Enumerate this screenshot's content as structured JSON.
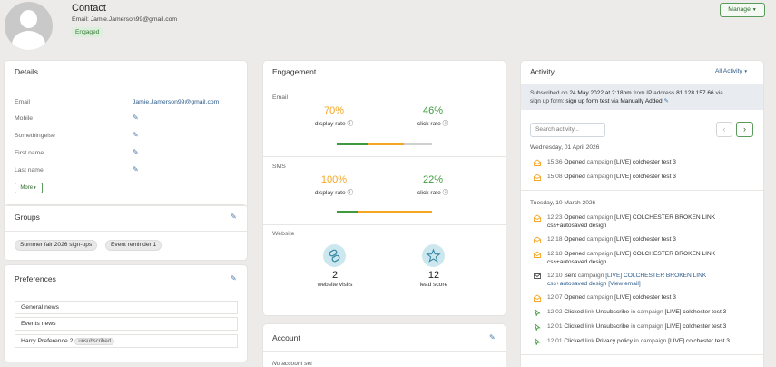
{
  "header": {
    "title": "Contact",
    "email_line": "Email: Jamie.Jamerson99@gmail.com",
    "status_badge": "Engaged",
    "manage_label": "Manage"
  },
  "details": {
    "title": "Details",
    "fields": [
      {
        "label": "Email",
        "value": "Jamie.Jamerson99@gmail.com"
      },
      {
        "label": "Mobile",
        "value": ""
      },
      {
        "label": "Somethingelse",
        "value": ""
      },
      {
        "label": "First name",
        "value": ""
      },
      {
        "label": "Last name",
        "value": ""
      }
    ],
    "more_label": "More"
  },
  "groups": {
    "title": "Groups",
    "tags": [
      "Summer fair 2026 sign-ups",
      "Event reminder 1"
    ]
  },
  "preferences": {
    "title": "Preferences",
    "items": [
      {
        "label": "General news",
        "badge": ""
      },
      {
        "label": "Events news",
        "badge": ""
      },
      {
        "label": "Harry Preference 2",
        "badge": "unsubscribed"
      }
    ]
  },
  "engagement": {
    "title": "Engagement",
    "email": {
      "label": "Email",
      "display_rate": "70%",
      "display_rate_label": "display rate",
      "click_rate": "46%",
      "click_rate_label": "click rate",
      "display_fraction": 0.7,
      "click_fraction": 0.46
    },
    "sms": {
      "label": "SMS",
      "display_rate": "100%",
      "display_rate_label": "display rate",
      "click_rate": "22%",
      "click_rate_label": "click rate",
      "display_fraction": 1.0,
      "click_fraction": 0.22
    },
    "website": {
      "label": "Website",
      "visits": "2",
      "visits_label": "website visits",
      "score": "12",
      "score_label": "lead score"
    },
    "colors": {
      "green": "#3f9a3f",
      "orange": "#f5a623",
      "grey": "#d0d0d0",
      "teal_circle": "#cde7ee"
    }
  },
  "account": {
    "title": "Account",
    "empty_text": "No account set"
  },
  "activity": {
    "title": "Activity",
    "filter_label": "All Activity",
    "subscribed": {
      "prefix": "Subscribed on",
      "date": "24 May 2022 at 2:18pm",
      "from": "from IP address",
      "ip": "81.128.157.66",
      "via": "via",
      "line2_prefix": "sign up form:",
      "form_name": "sign up form test",
      "via2": "via",
      "method": "Manually Added"
    },
    "search_placeholder": "Search activity...",
    "days": [
      {
        "date": "Wednesday, 01 April 2026",
        "events": [
          {
            "icon": "envelope-open-icon",
            "time": "15:36",
            "verb": "Opened",
            "object": "campaign",
            "text": "[LIVE] colchester test 3",
            "text2": ""
          },
          {
            "icon": "envelope-open-icon",
            "time": "15:08",
            "verb": "Opened",
            "object": "campaign",
            "text": "[LIVE] colchester test 3",
            "text2": ""
          }
        ]
      },
      {
        "date": "Tuesday, 10 March 2026",
        "events": [
          {
            "icon": "envelope-open-icon",
            "time": "12:23",
            "verb": "Opened",
            "object": "campaign",
            "text": "[LIVE] COLCHESTER BROKEN LINK",
            "text2": "css+autosaved design"
          },
          {
            "icon": "envelope-open-icon",
            "time": "12:18",
            "verb": "Opened",
            "object": "campaign",
            "text": "[LIVE] colchester test 3",
            "text2": ""
          },
          {
            "icon": "envelope-open-icon",
            "time": "12:18",
            "verb": "Opened",
            "object": "campaign",
            "text": "[LIVE] COLCHESTER BROKEN LINK",
            "text2": "css+autosaved design"
          },
          {
            "icon": "envelope-icon",
            "time": "12:10",
            "verb": "Sent",
            "object": "campaign",
            "text": "[LIVE] COLCHESTER BROKEN LINK",
            "text2": "css+autosaved design",
            "link": "[View email]"
          },
          {
            "icon": "envelope-open-icon",
            "time": "12:07",
            "verb": "Opened",
            "object": "campaign",
            "text": "[LIVE] colchester test 3",
            "text2": ""
          },
          {
            "icon": "cursor-icon",
            "time": "12:02",
            "verb": "Clicked",
            "object": "link",
            "linkname": "Unsubscribe",
            "in": "in campaign",
            "text": "[LIVE] colchester test 3"
          },
          {
            "icon": "cursor-icon",
            "time": "12:01",
            "verb": "Clicked",
            "object": "link",
            "linkname": "Unsubscribe",
            "in": "in campaign",
            "text": "[LIVE] colchester test 3"
          },
          {
            "icon": "cursor-icon",
            "time": "12:01",
            "verb": "Clicked",
            "object": "link",
            "linkname": "Privacy policy",
            "in": "in campaign",
            "text": "[LIVE] colchester test 3"
          }
        ]
      }
    ]
  }
}
